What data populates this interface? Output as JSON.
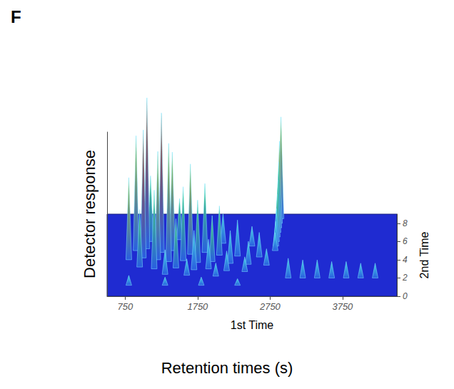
{
  "chart_data": {
    "type": "surface_peaks",
    "panel": "F",
    "title": "Retention times (s)",
    "x_label": "1st Time",
    "y_label": "2nd Time",
    "z_label": "Detector response",
    "xlim": [
      500,
      4500
    ],
    "xticks": [
      750,
      1750,
      2750,
      3750
    ],
    "ylim": [
      0,
      9
    ],
    "yticks": [
      0,
      2,
      4,
      6,
      8
    ],
    "zlim": [
      0,
      100
    ],
    "color": "#1f2bd1",
    "points": [
      [
        2900,
        8.5,
        62
      ],
      [
        2880,
        8,
        50
      ],
      [
        2870,
        7.5,
        40
      ],
      [
        2860,
        7,
        32
      ],
      [
        2850,
        6.5,
        26
      ],
      [
        2840,
        6,
        20
      ],
      [
        2830,
        5.5,
        15
      ],
      [
        2820,
        5,
        11
      ],
      [
        1100,
        6,
        40
      ],
      [
        1500,
        6.2,
        25
      ],
      [
        2100,
        5.8,
        18
      ],
      [
        2500,
        5.5,
        12
      ],
      [
        900,
        5,
        70
      ],
      [
        1050,
        5.2,
        92
      ],
      [
        1250,
        4.8,
        85
      ],
      [
        1400,
        5,
        60
      ],
      [
        1650,
        4.6,
        55
      ],
      [
        1850,
        4.8,
        42
      ],
      [
        2050,
        4.5,
        30
      ],
      [
        2300,
        4.4,
        22
      ],
      [
        2600,
        4.3,
        15
      ],
      [
        800,
        4,
        50
      ],
      [
        1000,
        4.2,
        78
      ],
      [
        1200,
        4,
        66
      ],
      [
        1350,
        3.8,
        72
      ],
      [
        1550,
        3.9,
        45
      ],
      [
        1750,
        3.7,
        38
      ],
      [
        1950,
        3.8,
        28
      ],
      [
        2200,
        3.6,
        20
      ],
      [
        2450,
        3.5,
        14
      ],
      [
        2700,
        3.4,
        10
      ],
      [
        950,
        3.2,
        35
      ],
      [
        1150,
        3,
        48
      ],
      [
        1450,
        3.1,
        30
      ],
      [
        1700,
        2.9,
        24
      ],
      [
        1900,
        3,
        18
      ],
      [
        2150,
        2.8,
        12
      ],
      [
        2400,
        2.7,
        9
      ],
      [
        1300,
        2.4,
        15
      ],
      [
        1600,
        2.3,
        10
      ],
      [
        2000,
        2.2,
        8
      ],
      [
        3000,
        2,
        12
      ],
      [
        3200,
        2,
        11
      ],
      [
        3400,
        2,
        11
      ],
      [
        3600,
        2,
        10
      ],
      [
        3800,
        2,
        10
      ],
      [
        4000,
        2,
        9
      ],
      [
        4200,
        2,
        9
      ],
      [
        800,
        1.2,
        6
      ],
      [
        1300,
        1.2,
        5
      ],
      [
        1800,
        1.2,
        5
      ],
      [
        2300,
        1.2,
        4
      ]
    ]
  }
}
